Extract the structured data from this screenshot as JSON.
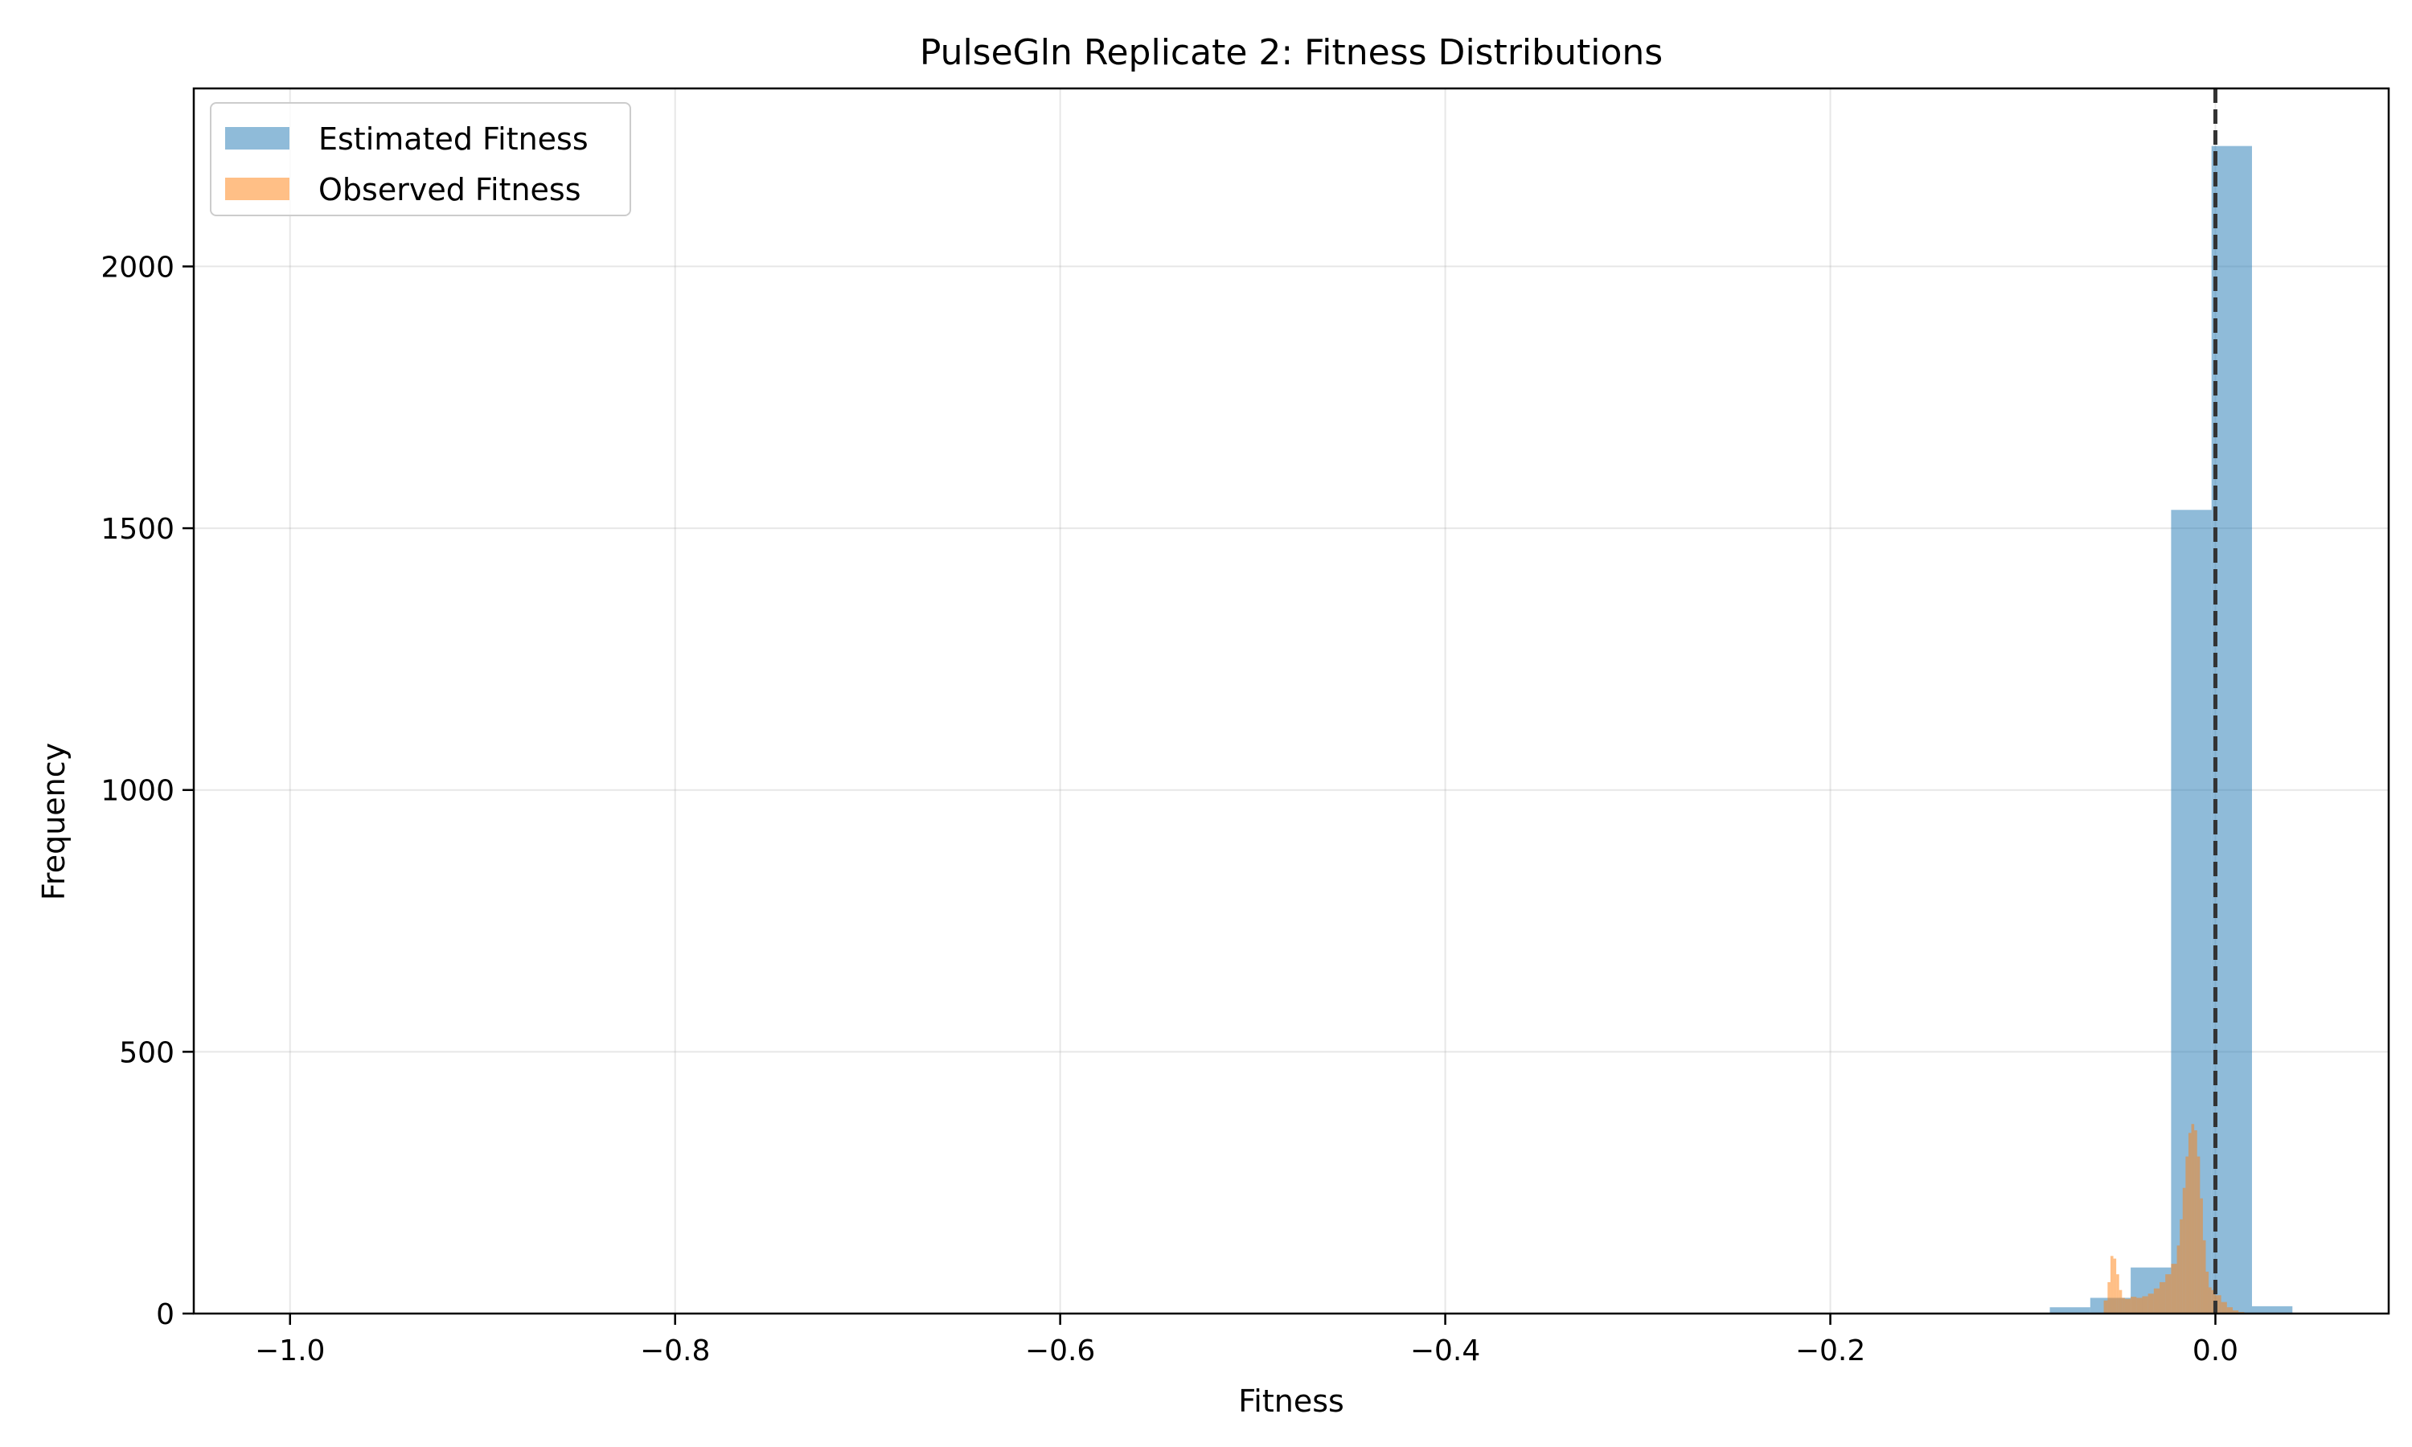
{
  "chart_data": {
    "type": "histogram",
    "title": "PulseGln Replicate 2: Fitness Distributions",
    "xlabel": "Fitness",
    "ylabel": "Frequency",
    "xlim": [
      -1.05,
      0.09
    ],
    "ylim": [
      0,
      2340
    ],
    "grid": true,
    "legend_position": "upper-left",
    "x_ticks": [
      {
        "value": -1.0,
        "label": "−1.0"
      },
      {
        "value": -0.8,
        "label": "−0.8"
      },
      {
        "value": -0.6,
        "label": "−0.6"
      },
      {
        "value": -0.4,
        "label": "−0.4"
      },
      {
        "value": -0.2,
        "label": "−0.2"
      },
      {
        "value": 0.0,
        "label": "0.0"
      }
    ],
    "y_ticks": [
      {
        "value": 0,
        "label": "0"
      },
      {
        "value": 500,
        "label": "500"
      },
      {
        "value": 1000,
        "label": "1000"
      },
      {
        "value": 1500,
        "label": "1500"
      },
      {
        "value": 2000,
        "label": "2000"
      }
    ],
    "reference_line": {
      "x": 0.0,
      "style": "dashed",
      "color": "#333333"
    },
    "series": [
      {
        "name": "Estimated Fitness",
        "color": "#1f77b4",
        "opacity": 0.5,
        "bins": [
          {
            "x0": -0.086,
            "x1": -0.065,
            "count": 12
          },
          {
            "x0": -0.065,
            "x1": -0.044,
            "count": 30
          },
          {
            "x0": -0.044,
            "x1": -0.023,
            "count": 88
          },
          {
            "x0": -0.023,
            "x1": -0.002,
            "count": 1535
          },
          {
            "x0": -0.002,
            "x1": 0.019,
            "count": 2230
          },
          {
            "x0": 0.019,
            "x1": 0.04,
            "count": 14
          }
        ]
      },
      {
        "name": "Observed Fitness",
        "color": "#ff7f0e",
        "opacity": 0.5,
        "bins": [
          {
            "x0": -0.058,
            "x1": -0.056,
            "count": 25
          },
          {
            "x0": -0.056,
            "x1": -0.0545,
            "count": 60
          },
          {
            "x0": -0.0545,
            "x1": -0.053,
            "count": 110
          },
          {
            "x0": -0.053,
            "x1": -0.0515,
            "count": 105
          },
          {
            "x0": -0.0515,
            "x1": -0.05,
            "count": 75
          },
          {
            "x0": -0.05,
            "x1": -0.0485,
            "count": 45
          },
          {
            "x0": -0.0485,
            "x1": -0.047,
            "count": 30
          },
          {
            "x0": -0.047,
            "x1": -0.044,
            "count": 28
          },
          {
            "x0": -0.044,
            "x1": -0.041,
            "count": 32
          },
          {
            "x0": -0.041,
            "x1": -0.038,
            "count": 30
          },
          {
            "x0": -0.038,
            "x1": -0.035,
            "count": 33
          },
          {
            "x0": -0.035,
            "x1": -0.032,
            "count": 38
          },
          {
            "x0": -0.032,
            "x1": -0.029,
            "count": 48
          },
          {
            "x0": -0.029,
            "x1": -0.026,
            "count": 60
          },
          {
            "x0": -0.026,
            "x1": -0.023,
            "count": 75
          },
          {
            "x0": -0.023,
            "x1": -0.02,
            "count": 95
          },
          {
            "x0": -0.02,
            "x1": -0.0185,
            "count": 130
          },
          {
            "x0": -0.0185,
            "x1": -0.017,
            "count": 180
          },
          {
            "x0": -0.017,
            "x1": -0.0155,
            "count": 240
          },
          {
            "x0": -0.0155,
            "x1": -0.014,
            "count": 300
          },
          {
            "x0": -0.014,
            "x1": -0.0125,
            "count": 345
          },
          {
            "x0": -0.0125,
            "x1": -0.011,
            "count": 362
          },
          {
            "x0": -0.011,
            "x1": -0.0095,
            "count": 350
          },
          {
            "x0": -0.0095,
            "x1": -0.008,
            "count": 300
          },
          {
            "x0": -0.008,
            "x1": -0.0065,
            "count": 220
          },
          {
            "x0": -0.0065,
            "x1": -0.005,
            "count": 140
          },
          {
            "x0": -0.005,
            "x1": -0.0035,
            "count": 80
          },
          {
            "x0": -0.0035,
            "x1": -0.002,
            "count": 50
          },
          {
            "x0": -0.002,
            "x1": 0.0,
            "count": 45
          },
          {
            "x0": 0.0,
            "x1": 0.003,
            "count": 35
          },
          {
            "x0": 0.003,
            "x1": 0.006,
            "count": 22
          },
          {
            "x0": 0.006,
            "x1": 0.009,
            "count": 12
          },
          {
            "x0": 0.009,
            "x1": 0.012,
            "count": 6
          },
          {
            "x0": 0.012,
            "x1": 0.015,
            "count": 3
          }
        ]
      }
    ]
  }
}
